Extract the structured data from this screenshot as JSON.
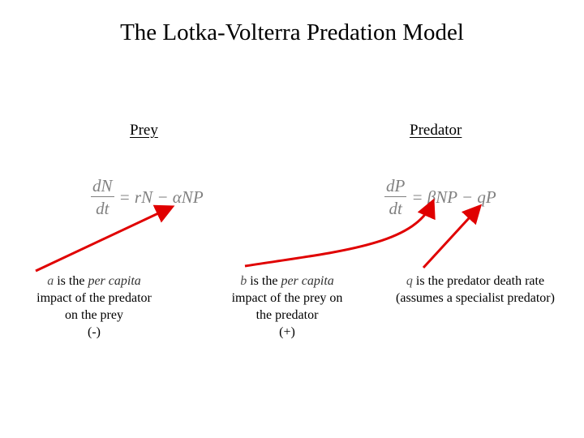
{
  "title": "The Lotka-Volterra Predation Model",
  "prey": {
    "heading": "Prey",
    "equation": {
      "numerator": "dN",
      "denominator": "dt",
      "rhs": "= rN − αNP"
    },
    "description": {
      "symbol": "a",
      "line1_prefix": " is the ",
      "line1_italic": "per capita",
      "line2": "impact of the predator",
      "line3": "on the prey",
      "line4": "(-)"
    }
  },
  "predator": {
    "heading": "Predator",
    "equation": {
      "numerator": "dP",
      "denominator": "dt",
      "rhs": "= βNP − qP"
    },
    "description_b": {
      "symbol": "b",
      "line1_prefix": " is the ",
      "line1_italic": "per capita",
      "line2": "impact of the prey on",
      "line3": "the predator",
      "line4": "(+)"
    },
    "description_q": {
      "symbol": "q",
      "line1": " is the predator death rate",
      "line2": "(assumes a specialist predator)"
    }
  },
  "colors": {
    "arrow": "#e00000",
    "equation_text": "#808080"
  }
}
